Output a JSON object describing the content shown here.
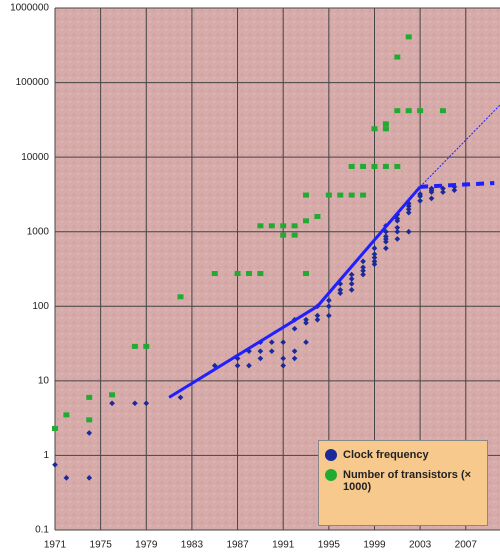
{
  "chart_data": {
    "type": "scatter",
    "log_y": true,
    "grid": true,
    "legend": "lower right",
    "xlim": [
      1971,
      2010
    ],
    "ylim": [
      0.1,
      1000000
    ],
    "xticks": [
      1971,
      1975,
      1979,
      1983,
      1987,
      1991,
      1995,
      1999,
      2003,
      2007
    ],
    "yticks": [
      0.1,
      1,
      10,
      100,
      1000,
      10000,
      100000,
      1000000
    ],
    "series": [
      {
        "name": "Clock frequency",
        "color": "#1a2a9a",
        "x": [
          1971,
          1972,
          1974,
          1974,
          1976,
          1978,
          1979,
          1982,
          1985,
          1987,
          1987,
          1988,
          1988,
          1989,
          1989,
          1989,
          1990,
          1990,
          1991,
          1991,
          1991,
          1992,
          1992,
          1992,
          1992,
          1993,
          1993,
          1993,
          1994,
          1994,
          1994,
          1995,
          1995,
          1995,
          1996,
          1996,
          1996,
          1997,
          1997,
          1997,
          1997,
          1998,
          1998,
          1998,
          1998,
          1999,
          1999,
          1999,
          1999,
          1999,
          2000,
          2000,
          2000,
          2000,
          2000,
          2000,
          2001,
          2001,
          2001,
          2001,
          2001,
          2001,
          2002,
          2002,
          2002,
          2002,
          2002,
          2003,
          2003,
          2003,
          2004,
          2004,
          2004,
          2004,
          2005,
          2005,
          2006,
          2006
        ],
        "values": [
          0.75,
          0.5,
          2,
          0.5,
          5,
          5,
          5,
          6,
          16,
          16,
          20,
          25,
          16,
          25,
          33,
          20,
          33,
          25,
          16,
          33,
          20,
          50,
          66,
          25,
          20,
          66,
          33,
          60,
          100,
          75,
          66,
          75,
          100,
          120,
          150,
          166,
          200,
          200,
          233,
          266,
          166,
          300,
          333,
          266,
          400,
          450,
          500,
          600,
          366,
          400,
          733,
          1000,
          800,
          600,
          866,
          1200,
          1400,
          1000,
          1700,
          800,
          1133,
          1500,
          2000,
          2200,
          1800,
          2400,
          1000,
          3000,
          3200,
          2600,
          3400,
          3600,
          3800,
          2800,
          3800,
          3400,
          3600,
          4000
        ]
      },
      {
        "name": "Number of transistors (× 1000)",
        "color": "#22aa33",
        "x": [
          1971,
          1972,
          1974,
          1974,
          1976,
          1978,
          1979,
          1982,
          1985,
          1987,
          1988,
          1989,
          1989,
          1990,
          1991,
          1991,
          1992,
          1992,
          1993,
          1993,
          1993,
          1994,
          1995,
          1996,
          1997,
          1997,
          1998,
          1998,
          1999,
          1999,
          2000,
          2000,
          2000,
          2001,
          2001,
          2001,
          2002,
          2002,
          2003,
          2005
        ],
        "values": [
          2.3,
          3.5,
          6,
          3,
          6.5,
          29,
          29,
          134,
          275,
          275,
          275,
          275,
          1200,
          1200,
          1200,
          900,
          900,
          1200,
          1400,
          275,
          3100,
          1600,
          3100,
          3100,
          3100,
          7500,
          3100,
          7500,
          7500,
          24000,
          24000,
          28000,
          7500,
          7500,
          42000,
          220000,
          42000,
          410000,
          42000,
          42000
        ]
      }
    ],
    "trend_lines": [
      {
        "color": "#1f1fff",
        "width": 3,
        "dash": false,
        "x": [
          1981,
          1994,
          2003
        ],
        "values": [
          6,
          100,
          4000
        ]
      },
      {
        "color": "#1f1fff",
        "width": 4,
        "dash": true,
        "x": [
          2003,
          2009.5
        ],
        "values": [
          4000,
          4500
        ]
      },
      {
        "color": "#1f1fff",
        "width": 1,
        "dash": true,
        "x": [
          2003,
          2010
        ],
        "values": [
          4000,
          50000
        ]
      }
    ]
  }
}
